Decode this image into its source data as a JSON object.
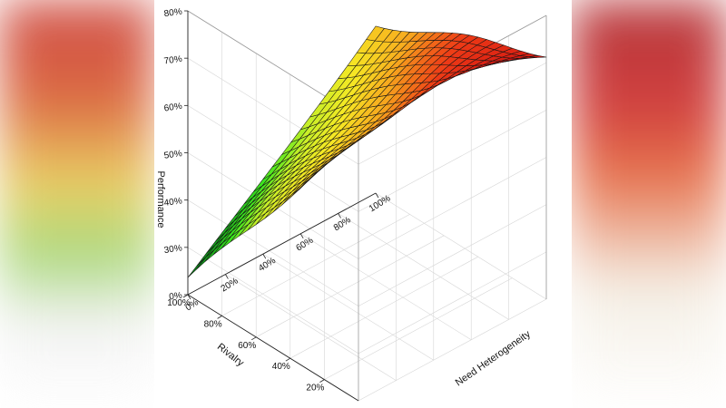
{
  "chart_data": {
    "type": "surface3d",
    "zlabel": "Performance",
    "xlabel": "Need Heterogeneity",
    "ylabel": "Rivalry",
    "x_ticks": [
      "0%",
      "20%",
      "40%",
      "60%",
      "80%",
      "100%"
    ],
    "y_ticks": [
      "20%",
      "40%",
      "60%",
      "80%",
      "100%"
    ],
    "z_ticks": [
      "0%",
      "30%",
      "40%",
      "50%",
      "60%",
      "70%",
      "80%"
    ],
    "x_range": [
      0,
      100
    ],
    "y_range": [
      0,
      100
    ],
    "z_range": [
      20,
      80
    ],
    "corner_values": [
      {
        "need_heterogeneity": 0,
        "rivalry": 0,
        "performance": 76
      },
      {
        "need_heterogeneity": 100,
        "rivalry": 0,
        "performance": 72
      },
      {
        "need_heterogeneity": 0,
        "rivalry": 100,
        "performance": 23
      },
      {
        "need_heterogeneity": 100,
        "rivalry": 100,
        "performance": 56
      }
    ],
    "peak": {
      "need_heterogeneity": 50,
      "rivalry": 0,
      "performance": 81
    },
    "colorscale": [
      "#0b5e1e",
      "#12a51a",
      "#3ee61e",
      "#c8ef28",
      "#f6e824",
      "#f7a81e",
      "#ee3a16",
      "#cf1212",
      "#8e0a0a"
    ],
    "grid": true
  }
}
